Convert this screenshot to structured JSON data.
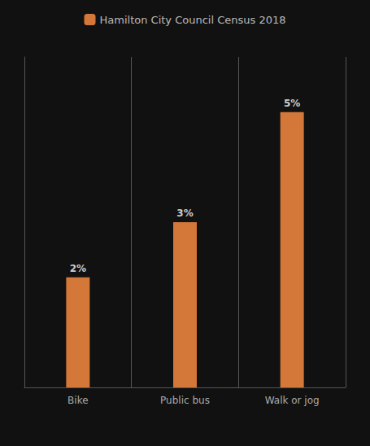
{
  "chart_data": {
    "type": "bar",
    "categories": [
      "Bike",
      "Public bus",
      "Walk or jog"
    ],
    "series": [
      {
        "name": "Hamilton City Council Census 2018",
        "color": "#D4783A",
        "values": [
          2,
          3,
          5
        ],
        "value_labels": [
          "2%",
          "3%",
          "5%"
        ]
      }
    ],
    "ylim": [
      0,
      6.0
    ],
    "grid": true,
    "legend": "top",
    "data_labels": true,
    "tick_labels": "x"
  }
}
